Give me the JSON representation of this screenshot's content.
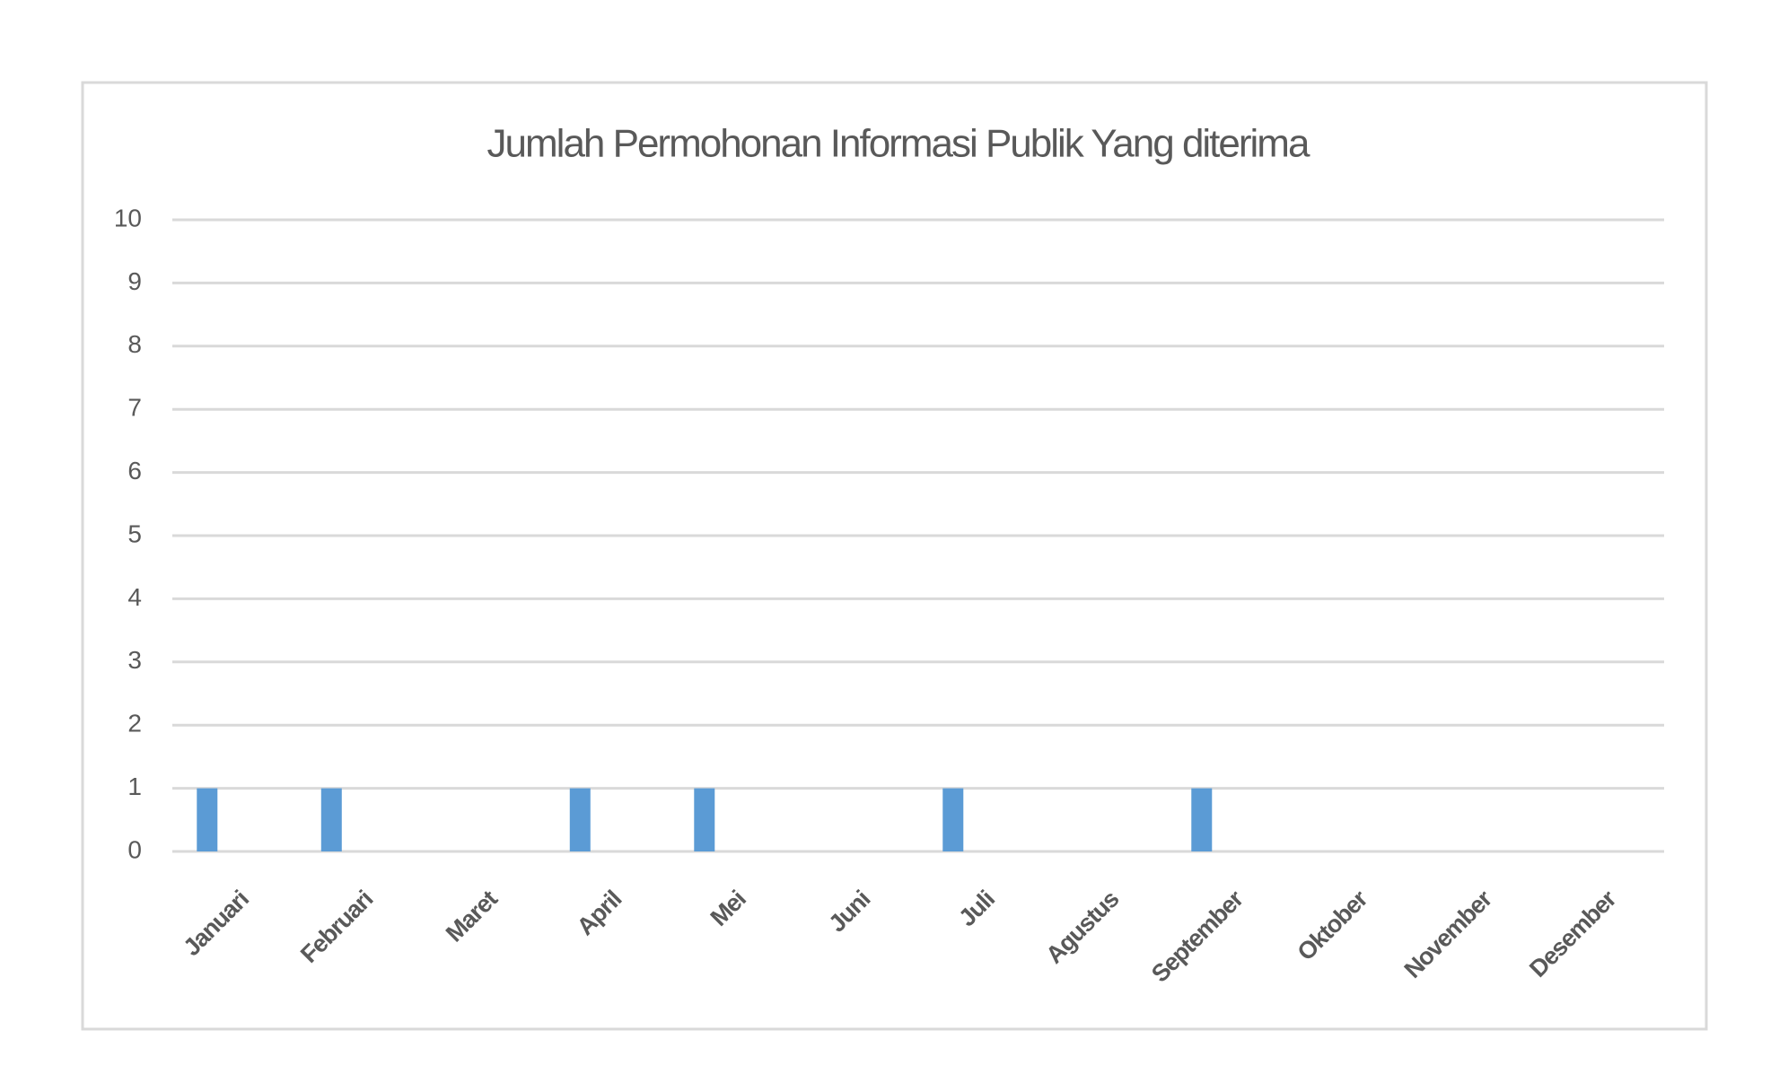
{
  "chart_data": {
    "type": "bar",
    "title": "Jumlah Permohonan Informasi Publik Yang diterima",
    "categories": [
      "Januari",
      "Februari",
      "Maret",
      "April",
      "Mei",
      "Juni",
      "Juli",
      "Agustus",
      "September",
      "Oktober",
      "November",
      "Desember"
    ],
    "values": [
      1,
      1,
      0,
      1,
      1,
      0,
      1,
      0,
      1,
      0,
      0,
      0
    ],
    "color": "#5b9bd5",
    "ylim": [
      0,
      10
    ],
    "yticks": [
      0,
      1,
      2,
      3,
      4,
      5,
      6,
      7,
      8,
      9,
      10
    ],
    "grid": true
  }
}
